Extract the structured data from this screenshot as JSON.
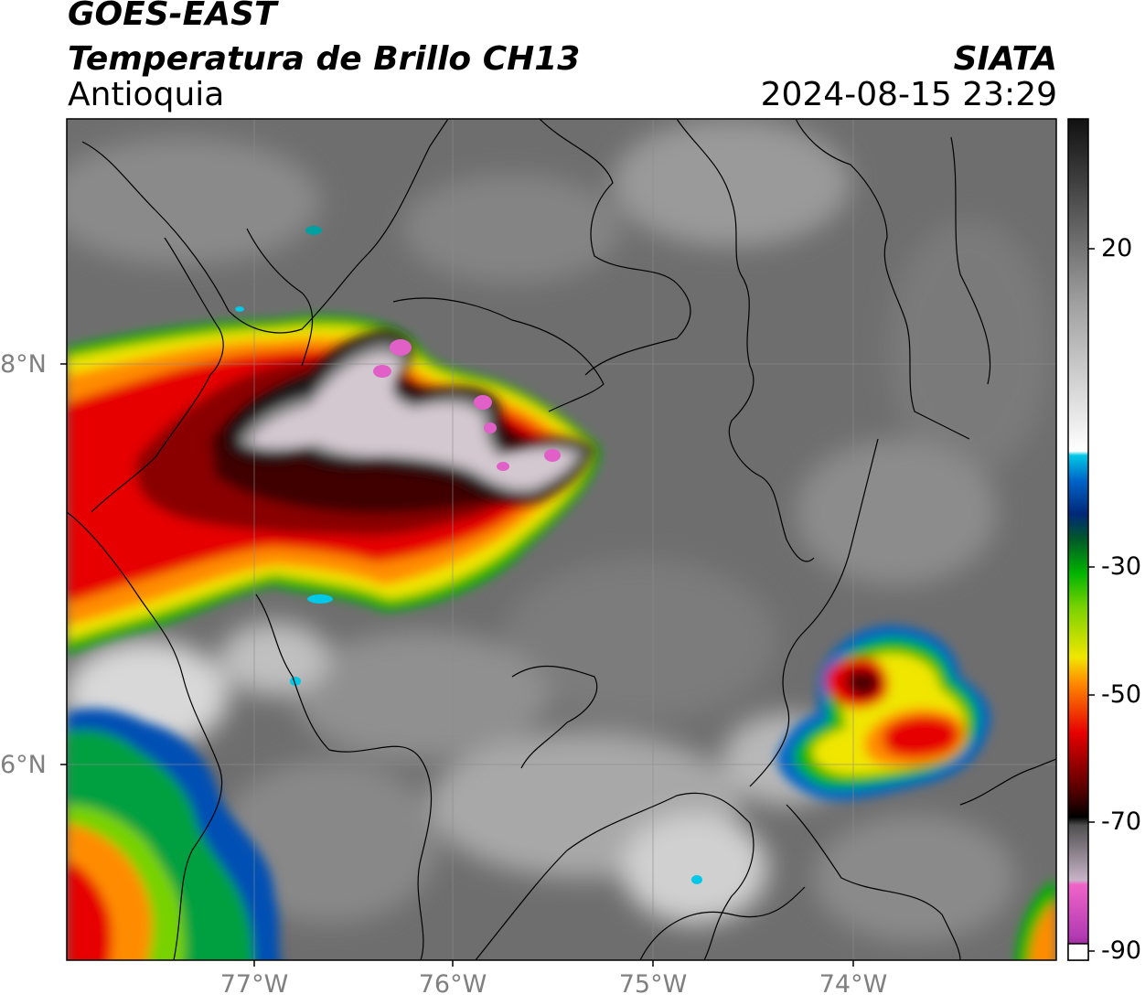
{
  "header": {
    "satellite": "GOES-EAST",
    "product": "Temperatura de Brillo CH13",
    "region": "Antioquia",
    "organization": "SIATA",
    "datetime": "2024-08-15 23:29"
  },
  "map": {
    "lat_labels": [
      "8°N",
      "6°N"
    ],
    "lon_labels": [
      "77°W",
      "76°W",
      "75°W",
      "74°W"
    ]
  },
  "colorbar": {
    "tick_labels": [
      "20",
      "-30",
      "-50",
      "-70",
      "-90"
    ],
    "colors": {
      "warm_gray": "#6e6e6e",
      "light_gray": "#f0f0f0",
      "cyan": "#00c8e6",
      "dark_blue": "#002878",
      "green": "#00b400",
      "yellow": "#f0e600",
      "orange": "#ff8c00",
      "red": "#e60000",
      "dark_red": "#500000",
      "black": "#000000",
      "magenta": "#e040c0",
      "purple": "#8c1e8c"
    }
  }
}
